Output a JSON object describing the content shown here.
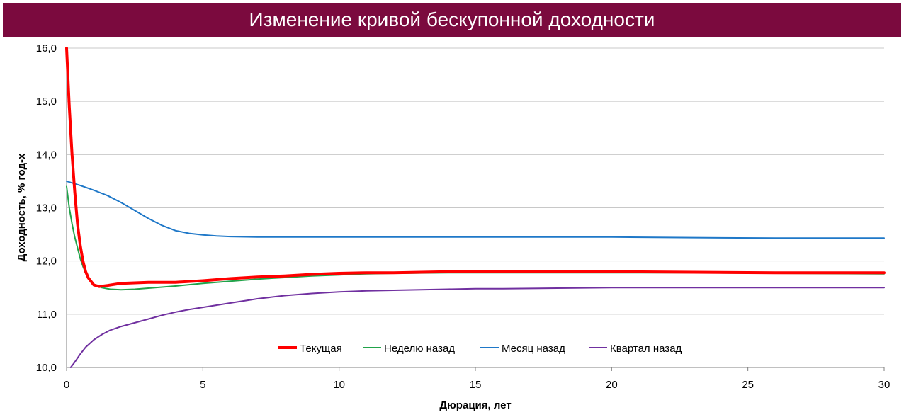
{
  "chart_data": {
    "type": "line",
    "title": "Изменение кривой бескупонной доходности",
    "xlabel": "Дюрация, лет",
    "ylabel": "Доходность, % год-х",
    "xlim": [
      0,
      30
    ],
    "ylim": [
      10.0,
      16.0
    ],
    "x_ticks": [
      "0",
      "5",
      "10",
      "15",
      "20",
      "25",
      "30"
    ],
    "y_ticks": [
      "10,0",
      "11,0",
      "12,0",
      "13,0",
      "14,0",
      "15,0",
      "16,0"
    ],
    "grid": "horizontal",
    "legend_position": "bottom-center-inside",
    "series": [
      {
        "name": "Текущая",
        "color": "#ff0000",
        "bold": true,
        "points": [
          [
            0.0,
            16.0
          ],
          [
            0.1,
            14.9
          ],
          [
            0.2,
            14.0
          ],
          [
            0.3,
            13.3
          ],
          [
            0.4,
            12.7
          ],
          [
            0.5,
            12.3
          ],
          [
            0.6,
            12.0
          ],
          [
            0.7,
            11.8
          ],
          [
            0.8,
            11.68
          ],
          [
            1.0,
            11.55
          ],
          [
            1.2,
            11.52
          ],
          [
            1.5,
            11.54
          ],
          [
            2.0,
            11.58
          ],
          [
            3.0,
            11.6
          ],
          [
            4.0,
            11.6
          ],
          [
            5.0,
            11.63
          ],
          [
            6.0,
            11.67
          ],
          [
            7.0,
            11.7
          ],
          [
            8.0,
            11.72
          ],
          [
            9.0,
            11.75
          ],
          [
            10.0,
            11.77
          ],
          [
            11.0,
            11.78
          ],
          [
            12.0,
            11.78
          ],
          [
            13.0,
            11.79
          ],
          [
            14.0,
            11.8
          ],
          [
            15.0,
            11.8
          ],
          [
            17.0,
            11.8
          ],
          [
            20.0,
            11.8
          ],
          [
            23.0,
            11.79
          ],
          [
            26.0,
            11.78
          ],
          [
            30.0,
            11.78
          ]
        ]
      },
      {
        "name": "Неделю назад",
        "color": "#21a34a",
        "bold": false,
        "points": [
          [
            0.0,
            13.4
          ],
          [
            0.1,
            13.0
          ],
          [
            0.2,
            12.7
          ],
          [
            0.3,
            12.45
          ],
          [
            0.4,
            12.25
          ],
          [
            0.5,
            12.05
          ],
          [
            0.6,
            11.9
          ],
          [
            0.7,
            11.78
          ],
          [
            0.8,
            11.68
          ],
          [
            1.0,
            11.56
          ],
          [
            1.3,
            11.5
          ],
          [
            1.6,
            11.47
          ],
          [
            2.0,
            11.46
          ],
          [
            2.5,
            11.47
          ],
          [
            3.0,
            11.49
          ],
          [
            4.0,
            11.53
          ],
          [
            5.0,
            11.58
          ],
          [
            6.0,
            11.62
          ],
          [
            7.0,
            11.66
          ],
          [
            8.0,
            11.69
          ],
          [
            9.0,
            11.72
          ],
          [
            10.0,
            11.74
          ],
          [
            11.0,
            11.76
          ],
          [
            12.0,
            11.77
          ],
          [
            14.0,
            11.78
          ],
          [
            16.0,
            11.78
          ],
          [
            20.0,
            11.78
          ],
          [
            23.0,
            11.78
          ],
          [
            26.0,
            11.77
          ],
          [
            30.0,
            11.76
          ]
        ]
      },
      {
        "name": "Месяц назад",
        "color": "#1f78c8",
        "bold": false,
        "points": [
          [
            0.0,
            13.5
          ],
          [
            0.5,
            13.42
          ],
          [
            1.0,
            13.33
          ],
          [
            1.5,
            13.23
          ],
          [
            2.0,
            13.1
          ],
          [
            2.5,
            12.95
          ],
          [
            3.0,
            12.8
          ],
          [
            3.5,
            12.67
          ],
          [
            4.0,
            12.57
          ],
          [
            4.5,
            12.52
          ],
          [
            5.0,
            12.49
          ],
          [
            5.5,
            12.47
          ],
          [
            6.0,
            12.46
          ],
          [
            7.0,
            12.45
          ],
          [
            8.0,
            12.45
          ],
          [
            10.0,
            12.45
          ],
          [
            12.0,
            12.45
          ],
          [
            15.0,
            12.45
          ],
          [
            20.0,
            12.45
          ],
          [
            23.0,
            12.44
          ],
          [
            26.0,
            12.43
          ],
          [
            30.0,
            12.43
          ]
        ]
      },
      {
        "name": "Квартал назад",
        "color": "#7030a0",
        "bold": false,
        "points": [
          [
            0.15,
            10.0
          ],
          [
            0.3,
            10.1
          ],
          [
            0.5,
            10.25
          ],
          [
            0.7,
            10.38
          ],
          [
            1.0,
            10.52
          ],
          [
            1.3,
            10.62
          ],
          [
            1.6,
            10.7
          ],
          [
            2.0,
            10.77
          ],
          [
            2.5,
            10.84
          ],
          [
            3.0,
            10.91
          ],
          [
            3.5,
            10.98
          ],
          [
            4.0,
            11.04
          ],
          [
            4.5,
            11.09
          ],
          [
            5.0,
            11.13
          ],
          [
            6.0,
            11.21
          ],
          [
            7.0,
            11.29
          ],
          [
            8.0,
            11.35
          ],
          [
            9.0,
            11.39
          ],
          [
            10.0,
            11.42
          ],
          [
            11.0,
            11.44
          ],
          [
            12.0,
            11.45
          ],
          [
            13.0,
            11.46
          ],
          [
            14.0,
            11.47
          ],
          [
            15.0,
            11.48
          ],
          [
            16.0,
            11.48
          ],
          [
            18.0,
            11.49
          ],
          [
            20.0,
            11.5
          ],
          [
            22.0,
            11.5
          ],
          [
            25.0,
            11.5
          ],
          [
            30.0,
            11.5
          ]
        ]
      }
    ]
  }
}
